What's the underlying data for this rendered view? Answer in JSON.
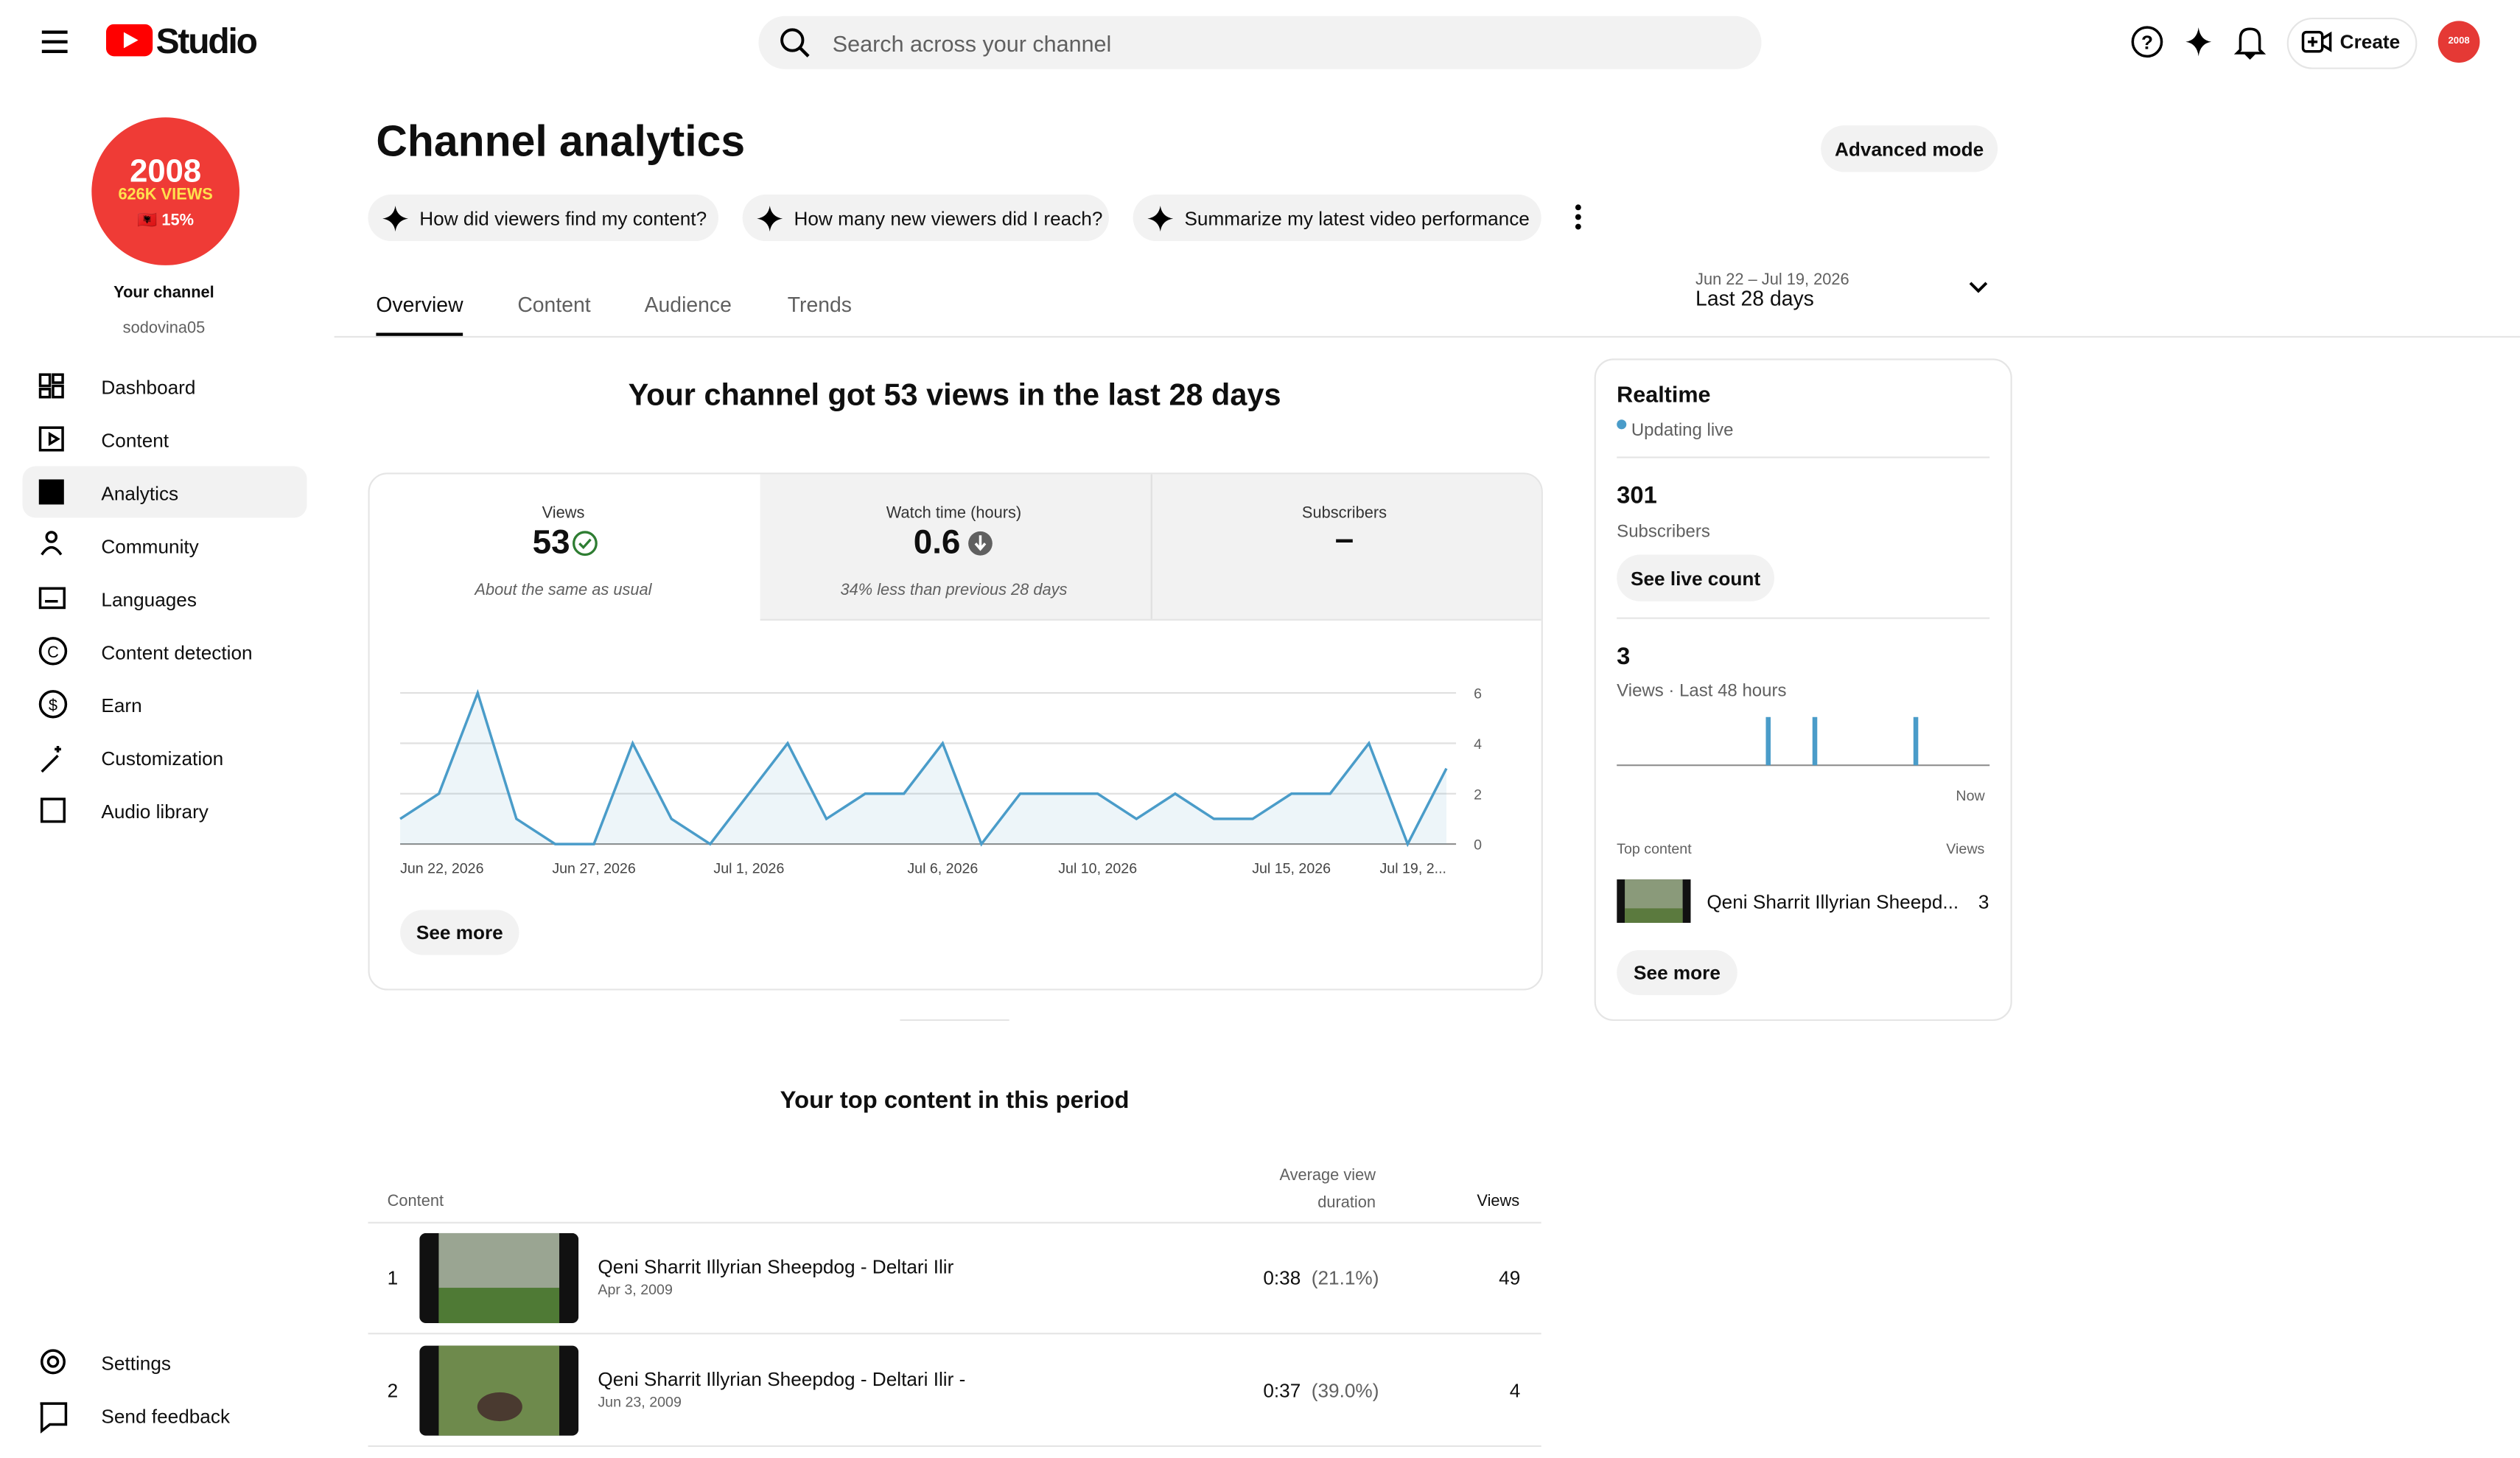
{
  "header": {
    "logo": "Studio",
    "search_placeholder": "Search across your channel",
    "create": "Create"
  },
  "sidebar": {
    "avatar_text": [
      "2008",
      "626K VIEWS",
      "🇦🇱 15%"
    ],
    "channel_label": "Your channel",
    "channel_handle": "sodovina05",
    "nav": [
      "Dashboard",
      "Content",
      "Analytics",
      "Community",
      "Languages",
      "Content detection",
      "Earn",
      "Customization",
      "Audio library"
    ],
    "footer_nav": [
      "Settings",
      "Send feedback"
    ]
  },
  "page": {
    "title": "Channel analytics",
    "advanced_mode": "Advanced mode",
    "prompts": [
      "How did viewers find my content?",
      "How many new viewers did I reach?",
      "Summarize my latest video performance"
    ],
    "tabs": [
      "Overview",
      "Content",
      "Audience",
      "Trends"
    ],
    "date_range": {
      "dates": "Jun 22 – Jul 19, 2026",
      "label": "Last 28 days"
    }
  },
  "summary": "Your channel got 53 views in the last 28 days",
  "metrics": [
    {
      "label": "Views",
      "value": "53",
      "note": "About the same as usual"
    },
    {
      "label": "Watch time (hours)",
      "value": "0.6",
      "note": "34% less than previous 28 days"
    },
    {
      "label": "Subscribers",
      "value": "–"
    }
  ],
  "chart_data": {
    "type": "line",
    "categories": [
      "Jun 22, 2026",
      null,
      null,
      null,
      null,
      "Jun 27, 2026",
      null,
      null,
      null,
      "Jul 1, 2026",
      null,
      null,
      null,
      null,
      "Jul 6, 2026",
      null,
      null,
      null,
      "Jul 10, 2026",
      null,
      null,
      null,
      null,
      "Jul 15, 2026",
      null,
      null,
      null,
      "Jul 19, 2..."
    ],
    "values": [
      1,
      2,
      6,
      1,
      0,
      0,
      4,
      1,
      0,
      2,
      4,
      1,
      2,
      2,
      4,
      0,
      2,
      2,
      2,
      1,
      2,
      1,
      1,
      2,
      2,
      4,
      0,
      3
    ],
    "color": "#4a9cc9",
    "ylim": [
      0,
      6
    ],
    "yticks": [
      0,
      2,
      4,
      6
    ],
    "grid": true
  },
  "see_more": "See more",
  "realtime": {
    "title": "Realtime",
    "status": "Updating live",
    "subscribers": "301",
    "subscribers_label": "Subscribers",
    "see_live_count": "See live count",
    "views": "3",
    "views_label": "Views · Last 48 hours",
    "hourly_views": [
      0,
      0,
      0,
      0,
      0,
      0,
      0,
      0,
      0,
      0,
      0,
      0,
      0,
      0,
      0,
      0,
      0,
      0,
      0,
      1,
      0,
      0,
      0,
      0,
      0,
      1,
      0,
      0,
      0,
      0,
      0,
      0,
      0,
      0,
      0,
      0,
      0,
      0,
      1,
      0,
      0,
      0,
      0,
      0,
      0,
      0,
      0,
      0
    ],
    "now": "Now",
    "top_content_label": "Top content",
    "views_column": "Views",
    "top_item": {
      "title": "Qeni Sharrit Illyrian Sheepd...",
      "views": "3"
    },
    "see_more": "See more"
  },
  "top_content": {
    "title": "Your top content in this period",
    "columns": [
      "Content",
      "Average view duration",
      "Views"
    ],
    "rows": [
      {
        "rank": "1",
        "title": "Qeni Sharrit Illyrian Sheepdog - Deltari Ilir",
        "date": "Apr 3, 2009",
        "duration": "0:38",
        "percent": "(21.1%)",
        "views": "49"
      },
      {
        "rank": "2",
        "title": "Qeni Sharrit Illyrian Sheepdog - Deltari Ilir -",
        "date": "Jun 23, 2009",
        "duration": "0:37",
        "percent": "(39.0%)",
        "views": "4"
      }
    ]
  }
}
